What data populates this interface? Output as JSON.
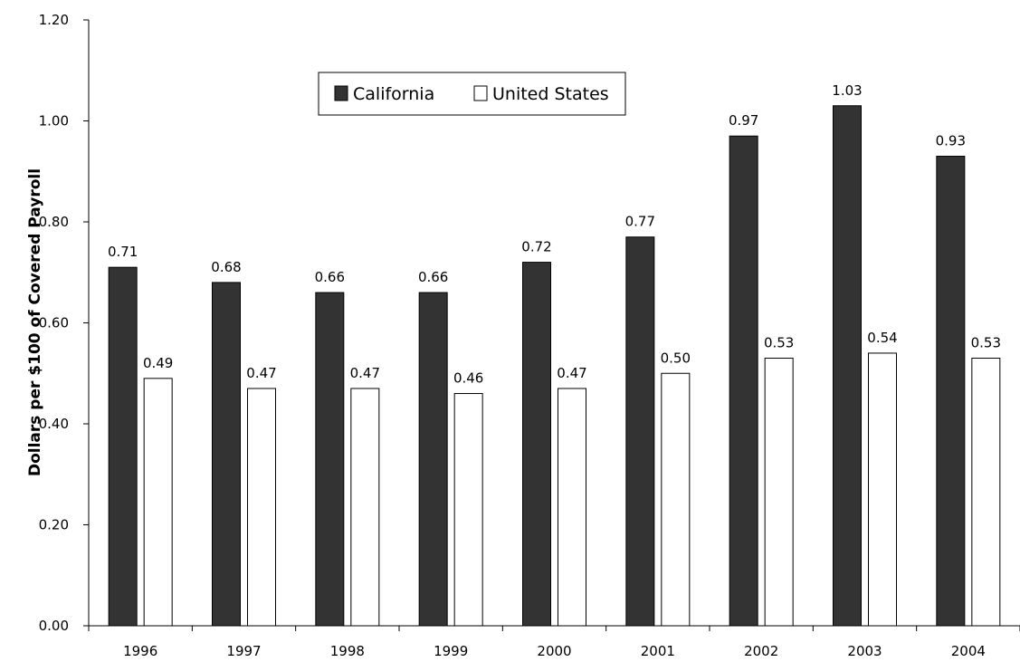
{
  "chart_data": {
    "type": "bar",
    "title": "",
    "xlabel": "",
    "ylabel": "Dollars per $100 of Covered Payroll",
    "categories": [
      "1996",
      "1997",
      "1998",
      "1999",
      "2000",
      "2001",
      "2002",
      "2003",
      "2004"
    ],
    "series": [
      {
        "name": "California",
        "color": "#333333",
        "values": [
          0.71,
          0.68,
          0.66,
          0.66,
          0.72,
          0.77,
          0.97,
          1.03,
          0.93
        ],
        "labels": [
          "0.71",
          "0.68",
          "0.66",
          "0.66",
          "0.72",
          "0.77",
          "0.97",
          "1.03",
          "0.93"
        ]
      },
      {
        "name": "United States",
        "color": "#ffffff",
        "values": [
          0.49,
          0.47,
          0.47,
          0.46,
          0.47,
          0.5,
          0.53,
          0.54,
          0.53
        ],
        "labels": [
          "0.49",
          "0.47",
          "0.47",
          "0.46",
          "0.47",
          "0.50",
          "0.53",
          "0.54",
          "0.53"
        ]
      }
    ],
    "ylim": [
      0,
      1.2
    ],
    "yticks": [
      "0.00",
      "0.20",
      "0.40",
      "0.60",
      "0.80",
      "1.00",
      "1.20"
    ],
    "grid": false,
    "legend_position": "top-center"
  }
}
